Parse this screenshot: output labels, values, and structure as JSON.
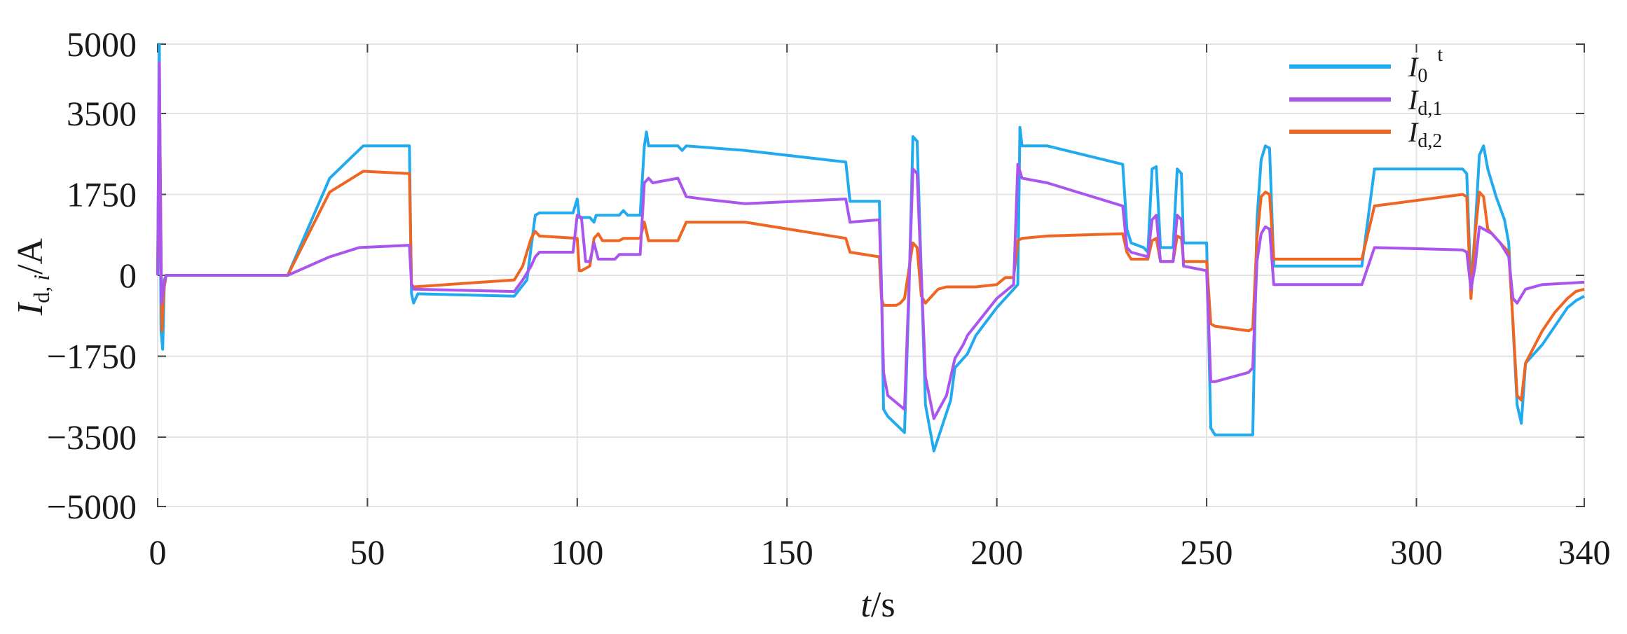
{
  "chart_data": {
    "type": "line",
    "title": "",
    "xlabel": "t/s",
    "ylabel": "I_d,i/A",
    "xlim": [
      0,
      340
    ],
    "ylim": [
      -5000,
      5000
    ],
    "xticks": [
      "0",
      "50",
      "100",
      "150",
      "200",
      "250",
      "300",
      "340"
    ],
    "yticks": [
      "5000",
      "3500",
      "1750",
      "0",
      "−1750",
      "−3500",
      "−5000"
    ],
    "ytick_values": [
      5000,
      3500,
      1750,
      0,
      -1750,
      -3500,
      -5000
    ],
    "xtick_values": [
      0,
      50,
      100,
      150,
      200,
      250,
      300,
      340
    ],
    "grid": true,
    "legend_position": "top-right",
    "series": [
      {
        "name": "I0t",
        "color": "#22aaee",
        "points": [
          [
            0,
            0
          ],
          [
            0.4,
            5000
          ],
          [
            0.8,
            -1200
          ],
          [
            1.2,
            -1600
          ],
          [
            1.6,
            -100
          ],
          [
            2,
            0
          ],
          [
            31,
            0
          ],
          [
            41,
            2100
          ],
          [
            49,
            2800
          ],
          [
            60,
            2800
          ],
          [
            60.5,
            -400
          ],
          [
            61,
            -600
          ],
          [
            62,
            -400
          ],
          [
            85,
            -450
          ],
          [
            88,
            -100
          ],
          [
            90,
            1300
          ],
          [
            91,
            1350
          ],
          [
            99,
            1350
          ],
          [
            100,
            1650
          ],
          [
            100.5,
            1250
          ],
          [
            103,
            1250
          ],
          [
            104,
            1150
          ],
          [
            104.5,
            1300
          ],
          [
            110,
            1300
          ],
          [
            111,
            1400
          ],
          [
            112,
            1300
          ],
          [
            115,
            1300
          ],
          [
            116,
            2800
          ],
          [
            116.5,
            3100
          ],
          [
            117,
            2800
          ],
          [
            124,
            2800
          ],
          [
            125,
            2700
          ],
          [
            126,
            2800
          ],
          [
            140,
            2700
          ],
          [
            164,
            2450
          ],
          [
            165,
            1600
          ],
          [
            172,
            1600
          ],
          [
            172.5,
            -200
          ],
          [
            173,
            -2900
          ],
          [
            174,
            -3050
          ],
          [
            178,
            -3400
          ],
          [
            179,
            -600
          ],
          [
            180,
            3000
          ],
          [
            181,
            2900
          ],
          [
            183,
            -2800
          ],
          [
            185,
            -3800
          ],
          [
            189,
            -2700
          ],
          [
            190,
            -2000
          ],
          [
            192,
            -1800
          ],
          [
            193,
            -1700
          ],
          [
            195,
            -1300
          ],
          [
            200,
            -700
          ],
          [
            204,
            -300
          ],
          [
            205,
            -200
          ],
          [
            205.5,
            3200
          ],
          [
            206,
            2800
          ],
          [
            212,
            2800
          ],
          [
            230,
            2400
          ],
          [
            231,
            1000
          ],
          [
            232,
            700
          ],
          [
            235,
            600
          ],
          [
            236,
            500
          ],
          [
            237,
            2300
          ],
          [
            238,
            2350
          ],
          [
            239,
            600
          ],
          [
            242,
            600
          ],
          [
            243,
            2300
          ],
          [
            244,
            2200
          ],
          [
            244.5,
            700
          ],
          [
            250,
            700
          ],
          [
            251,
            -3300
          ],
          [
            252,
            -3450
          ],
          [
            261,
            -3450
          ],
          [
            262,
            1200
          ],
          [
            263,
            2500
          ],
          [
            264,
            2800
          ],
          [
            265,
            2750
          ],
          [
            266,
            200
          ],
          [
            287,
            200
          ],
          [
            290,
            2300
          ],
          [
            311,
            2300
          ],
          [
            312,
            2200
          ],
          [
            313,
            -300
          ],
          [
            314,
            1000
          ],
          [
            315,
            2600
          ],
          [
            316,
            2800
          ],
          [
            317,
            2300
          ],
          [
            319,
            1700
          ],
          [
            321,
            1200
          ],
          [
            322,
            700
          ],
          [
            324,
            -2800
          ],
          [
            325,
            -3200
          ],
          [
            326,
            -1900
          ],
          [
            330,
            -1500
          ],
          [
            333,
            -1100
          ],
          [
            336,
            -700
          ],
          [
            338,
            -550
          ],
          [
            340,
            -450
          ]
        ]
      },
      {
        "name": "Id,1",
        "color": "#aa55ee",
        "points": [
          [
            0,
            0
          ],
          [
            0.4,
            4600
          ],
          [
            0.9,
            -600
          ],
          [
            1.5,
            -200
          ],
          [
            2,
            0
          ],
          [
            31,
            0
          ],
          [
            41,
            400
          ],
          [
            48,
            600
          ],
          [
            60,
            650
          ],
          [
            60.5,
            -200
          ],
          [
            61,
            -300
          ],
          [
            85,
            -350
          ],
          [
            87,
            -100
          ],
          [
            89,
            200
          ],
          [
            90,
            400
          ],
          [
            91,
            500
          ],
          [
            99,
            500
          ],
          [
            100,
            1300
          ],
          [
            101,
            1250
          ],
          [
            102,
            300
          ],
          [
            103,
            300
          ],
          [
            104,
            700
          ],
          [
            105,
            350
          ],
          [
            109,
            350
          ],
          [
            110,
            450
          ],
          [
            115,
            450
          ],
          [
            116,
            2000
          ],
          [
            117,
            2100
          ],
          [
            118,
            2000
          ],
          [
            124,
            2100
          ],
          [
            126,
            1700
          ],
          [
            130,
            1650
          ],
          [
            140,
            1550
          ],
          [
            164,
            1650
          ],
          [
            165,
            1150
          ],
          [
            172,
            1200
          ],
          [
            172.5,
            -300
          ],
          [
            173,
            -2100
          ],
          [
            174,
            -2600
          ],
          [
            178,
            -2900
          ],
          [
            179,
            -400
          ],
          [
            180,
            2300
          ],
          [
            181,
            2200
          ],
          [
            183,
            -2200
          ],
          [
            185,
            -3100
          ],
          [
            188,
            -2600
          ],
          [
            190,
            -1800
          ],
          [
            192,
            -1500
          ],
          [
            193,
            -1300
          ],
          [
            200,
            -500
          ],
          [
            204,
            -200
          ],
          [
            205,
            2400
          ],
          [
            206,
            2100
          ],
          [
            212,
            2000
          ],
          [
            230,
            1500
          ],
          [
            231,
            600
          ],
          [
            232,
            500
          ],
          [
            236,
            400
          ],
          [
            237,
            1200
          ],
          [
            238,
            1300
          ],
          [
            239,
            300
          ],
          [
            242,
            300
          ],
          [
            243,
            1300
          ],
          [
            244,
            1200
          ],
          [
            244.5,
            200
          ],
          [
            250,
            100
          ],
          [
            251,
            -2300
          ],
          [
            252,
            -2300
          ],
          [
            260,
            -2100
          ],
          [
            261,
            -2000
          ],
          [
            262,
            300
          ],
          [
            263,
            900
          ],
          [
            264,
            1050
          ],
          [
            265,
            1000
          ],
          [
            266,
            -200
          ],
          [
            287,
            -200
          ],
          [
            290,
            600
          ],
          [
            311,
            550
          ],
          [
            312,
            500
          ],
          [
            313,
            -300
          ],
          [
            314,
            200
          ],
          [
            315,
            1050
          ],
          [
            316,
            1000
          ],
          [
            318,
            900
          ],
          [
            320,
            700
          ],
          [
            322,
            400
          ],
          [
            323,
            -500
          ],
          [
            324,
            -600
          ],
          [
            326,
            -300
          ],
          [
            330,
            -200
          ],
          [
            340,
            -150
          ]
        ]
      },
      {
        "name": "Id,2",
        "color": "#ee6622",
        "points": [
          [
            0,
            0
          ],
          [
            0.5,
            3400
          ],
          [
            1,
            -1200
          ],
          [
            1.5,
            -300
          ],
          [
            2,
            0
          ],
          [
            31,
            0
          ],
          [
            41,
            1800
          ],
          [
            49,
            2250
          ],
          [
            60,
            2200
          ],
          [
            60.5,
            -200
          ],
          [
            61,
            -250
          ],
          [
            85,
            -100
          ],
          [
            87,
            200
          ],
          [
            89,
            800
          ],
          [
            90,
            950
          ],
          [
            91,
            850
          ],
          [
            100,
            800
          ],
          [
            100.5,
            100
          ],
          [
            101,
            100
          ],
          [
            103,
            200
          ],
          [
            104,
            800
          ],
          [
            105,
            900
          ],
          [
            106,
            750
          ],
          [
            110,
            750
          ],
          [
            111,
            800
          ],
          [
            115,
            800
          ],
          [
            116,
            1150
          ],
          [
            117,
            750
          ],
          [
            124,
            750
          ],
          [
            126,
            1150
          ],
          [
            130,
            1150
          ],
          [
            140,
            1150
          ],
          [
            164,
            800
          ],
          [
            165,
            500
          ],
          [
            172,
            400
          ],
          [
            172.5,
            -500
          ],
          [
            173,
            -650
          ],
          [
            176,
            -650
          ],
          [
            177,
            -600
          ],
          [
            178,
            -500
          ],
          [
            179,
            100
          ],
          [
            180,
            700
          ],
          [
            181,
            600
          ],
          [
            182,
            -450
          ],
          [
            183,
            -600
          ],
          [
            184,
            -500
          ],
          [
            185,
            -400
          ],
          [
            186,
            -300
          ],
          [
            188,
            -250
          ],
          [
            195,
            -250
          ],
          [
            200,
            -200
          ],
          [
            202,
            -50
          ],
          [
            204,
            -50
          ],
          [
            205,
            750
          ],
          [
            206,
            800
          ],
          [
            212,
            850
          ],
          [
            230,
            900
          ],
          [
            231,
            500
          ],
          [
            232,
            350
          ],
          [
            236,
            350
          ],
          [
            237,
            750
          ],
          [
            238,
            800
          ],
          [
            239,
            300
          ],
          [
            242,
            300
          ],
          [
            243,
            850
          ],
          [
            244,
            800
          ],
          [
            244.5,
            300
          ],
          [
            250,
            300
          ],
          [
            251,
            -1050
          ],
          [
            252,
            -1100
          ],
          [
            260,
            -1200
          ],
          [
            261,
            -1150
          ],
          [
            262,
            800
          ],
          [
            263,
            1700
          ],
          [
            264,
            1800
          ],
          [
            265,
            1750
          ],
          [
            266,
            350
          ],
          [
            287,
            350
          ],
          [
            290,
            1500
          ],
          [
            311,
            1750
          ],
          [
            312,
            1700
          ],
          [
            313,
            -500
          ],
          [
            314,
            900
          ],
          [
            315,
            1800
          ],
          [
            316,
            1700
          ],
          [
            317,
            1000
          ],
          [
            318,
            900
          ],
          [
            320,
            700
          ],
          [
            322,
            500
          ],
          [
            323,
            -1000
          ],
          [
            324,
            -2600
          ],
          [
            325,
            -2700
          ],
          [
            326,
            -1900
          ],
          [
            330,
            -1200
          ],
          [
            333,
            -800
          ],
          [
            336,
            -500
          ],
          [
            338,
            -350
          ],
          [
            340,
            -300
          ]
        ]
      }
    ],
    "legend": [
      {
        "main": "I",
        "sub": "0",
        "sup": "t"
      },
      {
        "main": "I",
        "sub": "d,1",
        "sup": ""
      },
      {
        "main": "I",
        "sub": "d,2",
        "sup": ""
      }
    ]
  }
}
